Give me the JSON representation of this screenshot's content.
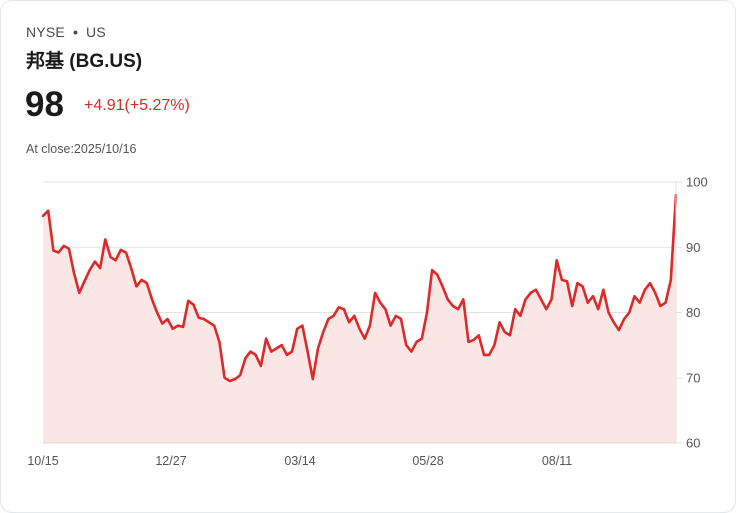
{
  "header": {
    "exchange": "NYSE",
    "region": "US",
    "separator": "•",
    "title": "邦基 (BG.US)",
    "price": "98",
    "change": "+4.91(+5.27%)",
    "close_label": "At close:2025/10/16"
  },
  "colors": {
    "line": "#dc2a2a",
    "fill": "#fbe6e6",
    "grid": "#e2e2e2",
    "text": "#1a1a1a",
    "muted": "#555555"
  },
  "chart_data": {
    "type": "area",
    "title": "邦基 (BG.US)",
    "xlabel": "",
    "ylabel": "",
    "ylim": [
      60,
      100
    ],
    "yticks": [
      60,
      70,
      80,
      90,
      100
    ],
    "xtick_labels": [
      "10/15",
      "12/27",
      "03/14",
      "05/28",
      "08/11"
    ],
    "grid": true,
    "legend": "none",
    "series": [
      {
        "name": "BG.US",
        "x_start": "2024/10/15",
        "x_end": "2025/10/16",
        "values": [
          94.8,
          95.6,
          89.5,
          89.2,
          90.2,
          89.8,
          86.0,
          83.0,
          84.8,
          86.5,
          87.8,
          86.8,
          91.2,
          88.5,
          88.0,
          89.6,
          89.2,
          86.8,
          84.0,
          85.0,
          84.5,
          82.0,
          80.0,
          78.3,
          79.0,
          77.5,
          78.0,
          77.8,
          81.8,
          81.2,
          79.2,
          79.0,
          78.5,
          78.0,
          75.5,
          70.0,
          69.5,
          69.8,
          70.4,
          73.0,
          74.0,
          73.5,
          71.8,
          76.0,
          74.0,
          74.5,
          75.0,
          73.5,
          74.0,
          77.5,
          78.0,
          74.0,
          69.8,
          74.5,
          77.0,
          79.0,
          79.5,
          80.8,
          80.5,
          78.5,
          79.5,
          77.5,
          76.0,
          78.0,
          83.0,
          81.5,
          80.5,
          78.0,
          79.5,
          79.0,
          75.0,
          74.0,
          75.5,
          76.0,
          80.0,
          86.5,
          85.8,
          84.0,
          82.0,
          81.0,
          80.5,
          82.0,
          75.5,
          75.8,
          76.5,
          73.5,
          73.5,
          75.0,
          78.5,
          77.0,
          76.5,
          80.5,
          79.5,
          82.0,
          83.0,
          83.5,
          82.0,
          80.5,
          82.0,
          88.0,
          85.0,
          84.8,
          81.0,
          84.5,
          84.0,
          81.5,
          82.5,
          80.5,
          83.5,
          80.0,
          78.5,
          77.3,
          79.0,
          80.0,
          82.5,
          81.5,
          83.5,
          84.5,
          83.0,
          81.0,
          81.5,
          85.0,
          98.0
        ]
      }
    ]
  },
  "axes": {
    "y": [
      {
        "label": "100",
        "value": 100
      },
      {
        "label": "90",
        "value": 90
      },
      {
        "label": "80",
        "value": 80
      },
      {
        "label": "70",
        "value": 70
      },
      {
        "label": "60",
        "value": 60
      }
    ],
    "x": [
      "10/15",
      "12/27",
      "03/14",
      "05/28",
      "08/11"
    ]
  }
}
